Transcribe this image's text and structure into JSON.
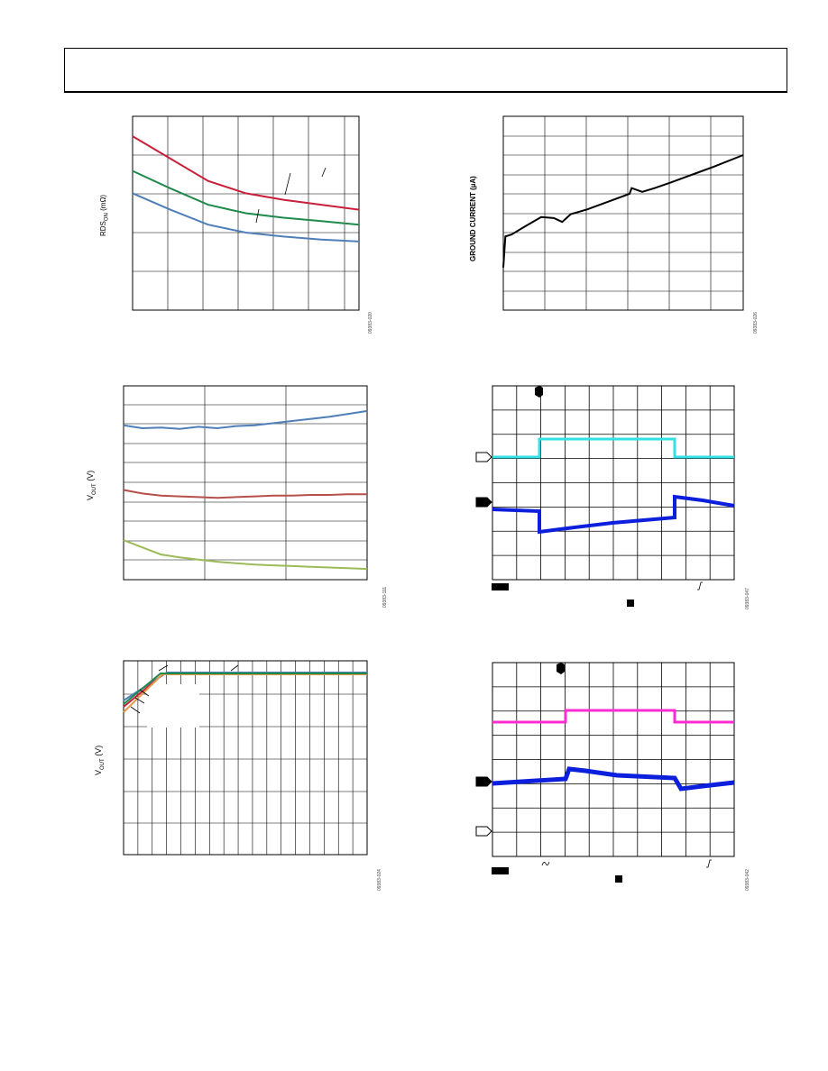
{
  "header": {
    "title": ""
  },
  "colors": {
    "red": "#c8203a",
    "green": "#1f8a4c",
    "blue_steel": "#4f7fb8",
    "brick": "#b5504a",
    "olive": "#9bbb59",
    "cyan": "#33e0e6",
    "magenta": "#ff2bd2",
    "scope_blue": "#0b1fdc",
    "orange": "#e39a4a"
  },
  "panels": {
    "rds": {
      "ylabel": "RDS",
      "ylabel_sub": "ON",
      "ylabel_unit": " (mΩ)",
      "fig_id": "09383-020",
      "chart_data": {
        "type": "line",
        "title": "",
        "xlabel": "",
        "ylabel": "RDSON (mΩ)",
        "grid": true,
        "x": [
          0,
          1,
          2,
          3,
          4,
          5,
          6
        ],
        "series": [
          {
            "color": "#c8203a",
            "values": [
              5.0,
              4.55,
              4.1,
              3.85,
              3.72,
              3.62,
              3.52
            ]
          },
          {
            "color": "#1f8a4c",
            "values": [
              4.3,
              3.95,
              3.62,
              3.45,
              3.36,
              3.29,
              3.22
            ]
          },
          {
            "color": "#4f7fb8",
            "values": [
              3.85,
              3.52,
              3.22,
              3.06,
              2.98,
              2.92,
              2.88
            ]
          }
        ]
      }
    },
    "ground_current": {
      "ylabel": "GROUND CURRENT (µA)",
      "fig_id": "09383-026",
      "chart_data": {
        "type": "line",
        "title": "",
        "xlabel": "",
        "ylabel": "GROUND CURRENT (µA)",
        "grid": true,
        "x": [
          0,
          0.05,
          0.2,
          0.5,
          0.9,
          1.2,
          1.4,
          1.6,
          2.0,
          2.5,
          3.0,
          3.05,
          3.3,
          3.6,
          4.0,
          4.5,
          5.0,
          5.7
        ],
        "series": [
          {
            "color": "#000000",
            "values": [
              2.2,
              3.8,
              3.9,
              4.3,
              4.8,
              4.75,
              4.55,
              4.95,
              5.2,
              5.6,
              6.0,
              6.3,
              6.1,
              6.3,
              6.6,
              7.0,
              7.4,
              8.0
            ]
          }
        ]
      }
    },
    "vout_temp": {
      "ylabel": "V",
      "ylabel_sub": "OUT",
      "ylabel_unit": " (V)",
      "fig_id": "09383-111",
      "chart_data": {
        "type": "line",
        "title": "",
        "xlabel": "",
        "ylabel": "VOUT (V)",
        "grid": true,
        "series": [
          {
            "color": "#4f7fb8",
            "values": [
              5.0,
              4.96,
              4.97,
              4.95,
              4.98,
              4.96,
              4.99,
              5.0,
              5.03,
              5.06,
              5.09,
              5.12,
              5.16,
              5.2
            ]
          },
          {
            "color": "#b5504a",
            "values": [
              4.1,
              4.05,
              4.02,
              4.01,
              4.0,
              3.99,
              4.0,
              4.01,
              4.02,
              4.02,
              4.03,
              4.03,
              4.04,
              4.04
            ]
          },
          {
            "color": "#9bbb59",
            "values": [
              3.4,
              3.3,
              3.2,
              3.16,
              3.13,
              3.1,
              3.08,
              3.06,
              3.05,
              3.04,
              3.03,
              3.02,
              3.01,
              3.0
            ]
          }
        ]
      }
    },
    "scope1": {
      "fig_id": "09383-047",
      "chart_data": {
        "type": "line",
        "title": "",
        "grid": true,
        "series": [
          {
            "color": "#33e0e6",
            "values": [
              0,
              0,
              1,
              1,
              1,
              0,
              0
            ]
          },
          {
            "color": "#0b1fdc",
            "values": [
              0.5,
              0.5,
              -0.3,
              -0.05,
              0.0,
              0.55,
              0.35
            ]
          }
        ]
      }
    },
    "vout_dropout": {
      "ylabel": "V",
      "ylabel_sub": "OUT",
      "ylabel_unit": " (V)",
      "fig_id": "09383-024",
      "chart_data": {
        "type": "line",
        "title": "",
        "grid": true,
        "series": [
          {
            "color": "#4f7fb8",
            "values": [
              2.6,
              3.3,
              3.3
            ]
          },
          {
            "color": "#c8203a",
            "values": [
              2.45,
              3.3,
              3.3
            ]
          },
          {
            "color": "#e39a4a",
            "values": [
              2.3,
              3.3,
              3.3
            ]
          },
          {
            "color": "#1f8a4c",
            "values": [
              2.5,
              3.3,
              3.3
            ]
          }
        ]
      }
    },
    "scope2": {
      "fig_id": "09383-042",
      "chart_data": {
        "type": "line",
        "title": "",
        "grid": true,
        "series": [
          {
            "color": "#ff2bd2",
            "values": [
              0,
              0,
              1,
              1,
              1,
              0,
              0
            ]
          },
          {
            "color": "#0b1fdc",
            "values": [
              0,
              0,
              0.3,
              0.1,
              0.05,
              -0.2,
              0
            ]
          }
        ]
      }
    }
  }
}
